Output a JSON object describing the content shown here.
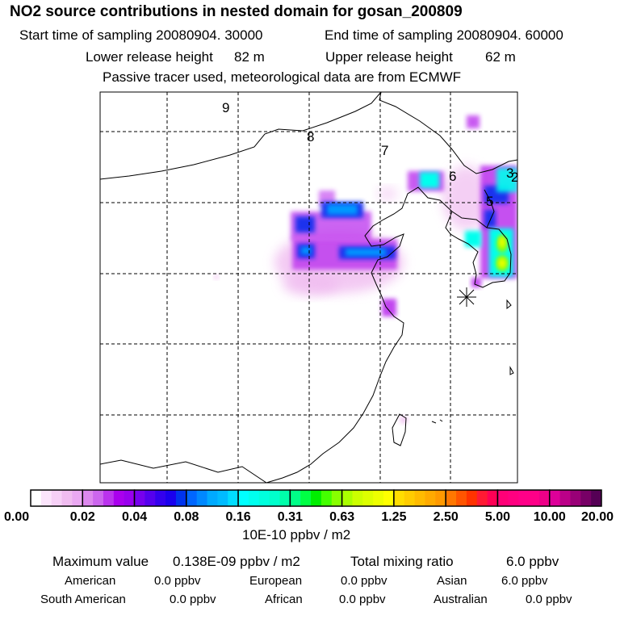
{
  "header": {
    "title": "NO2 source contributions in nested domain for gosan_200809",
    "start_label": "Start time of sampling 20080904. 30000",
    "end_label": "End time of sampling 20080904. 60000",
    "lower_label": "Lower release height",
    "lower_value": "82 m",
    "upper_label": "Upper release height",
    "upper_value": "62 m",
    "note": "Passive tracer used, meteorological data are from ECMWF"
  },
  "map": {
    "trajectory_labels": [
      "9",
      "8",
      "7",
      "6",
      "5",
      "3",
      "2"
    ],
    "receptor_marker": "star-icon",
    "plume_colors": {
      "light": "#f0bcf0",
      "violet": "#bb33ee",
      "blue": "#1a33ee",
      "lightblue": "#0099ff",
      "cyan": "#00ffee",
      "green": "#88ff00",
      "yellow": "#eeff00"
    }
  },
  "colorbar": {
    "labels": [
      "0.00",
      "0.02",
      "0.04",
      "0.08",
      "0.16",
      "0.31",
      "0.63",
      "1.25",
      "2.50",
      "5.00",
      "10.00",
      "20.00"
    ],
    "segments": [
      [
        "#ffffff",
        "#fbe4fb",
        "#f6d0f6",
        "#f0bcf0",
        "#eaa8f2"
      ],
      [
        "#dd88ee",
        "#cc66ee",
        "#bb33ee",
        "#aa00ee",
        "#9900ee"
      ],
      [
        "#7700ee",
        "#5500ee",
        "#3300ee",
        "#1a00ee",
        "#0033ee"
      ],
      [
        "#0066ff",
        "#0088ff",
        "#00aaff",
        "#00bbff",
        "#00ddff"
      ],
      [
        "#00ffff",
        "#00ffee",
        "#00ffdd",
        "#00ffcc",
        "#00ffaa"
      ],
      [
        "#00ff88",
        "#00ff44",
        "#00ee00",
        "#44ff00",
        "#88ff00"
      ],
      [
        "#aaff00",
        "#ccff00",
        "#ddff00",
        "#eeff00",
        "#ffff00"
      ],
      [
        "#ffdd00",
        "#ffcc00",
        "#ffbb00",
        "#ffaa00",
        "#ff9900"
      ],
      [
        "#ff7700",
        "#ff5500",
        "#ff3300",
        "#ff1a33",
        "#ff0055"
      ],
      [
        "#ff0077",
        "#ff0080",
        "#ff0088",
        "#ff0088",
        "#ee0088"
      ],
      [
        "#dd0099",
        "#bb0088",
        "#990077",
        "#770066",
        "#550055"
      ]
    ],
    "unit": "10E-10 ppbv / m2"
  },
  "stats": {
    "max_label": "Maximum value",
    "max_value": "0.138E-09 ppbv / m2",
    "total_label": "Total mixing ratio",
    "total_value": "6.0 ppbv",
    "regions": [
      {
        "name": "American",
        "value": "0.0 ppbv"
      },
      {
        "name": "European",
        "value": "0.0 ppbv"
      },
      {
        "name": "Asian",
        "value": "6.0 ppbv"
      },
      {
        "name": "South American",
        "value": "0.0 ppbv"
      },
      {
        "name": "African",
        "value": "0.0 ppbv"
      },
      {
        "name": "Australian",
        "value": "0.0 ppbv"
      }
    ]
  }
}
